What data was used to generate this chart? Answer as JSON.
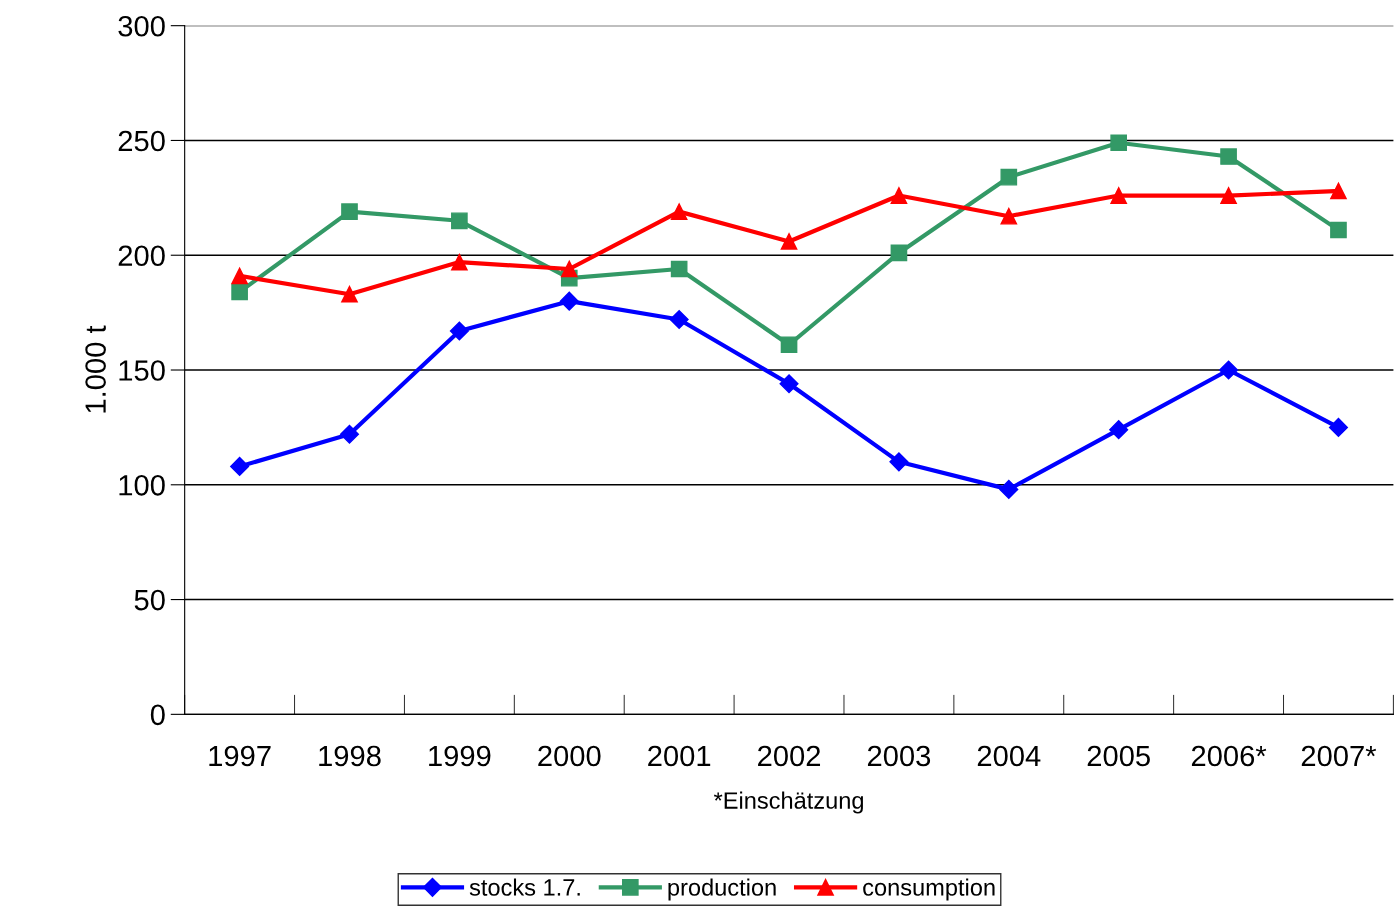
{
  "chart_data": {
    "type": "line",
    "ylabel": "1.000 t",
    "xlabel": "*Einschätzung",
    "categories": [
      "1997",
      "1998",
      "1999",
      "2000",
      "2001",
      "2002",
      "2003",
      "2004",
      "2005",
      "2006*",
      "2007*"
    ],
    "series": [
      {
        "name": "stocks 1.7.",
        "color": "#0000ff",
        "marker": "diamond",
        "values": [
          108,
          122,
          167,
          180,
          172,
          144,
          110,
          98,
          124,
          150,
          125
        ]
      },
      {
        "name": "production",
        "color": "#339966",
        "marker": "square",
        "values": [
          184,
          219,
          215,
          190,
          194,
          161,
          201,
          234,
          249,
          243,
          211
        ]
      },
      {
        "name": "consumption",
        "color": "#ff0000",
        "marker": "triangle",
        "values": [
          191,
          183,
          197,
          194,
          219,
          206,
          226,
          217,
          226,
          226,
          228
        ]
      }
    ],
    "ylim": [
      0,
      300
    ],
    "yticks": [
      0,
      50,
      100,
      150,
      200,
      250,
      300
    ],
    "grid": "y",
    "legend": "bottom",
    "line_style": "solid"
  }
}
